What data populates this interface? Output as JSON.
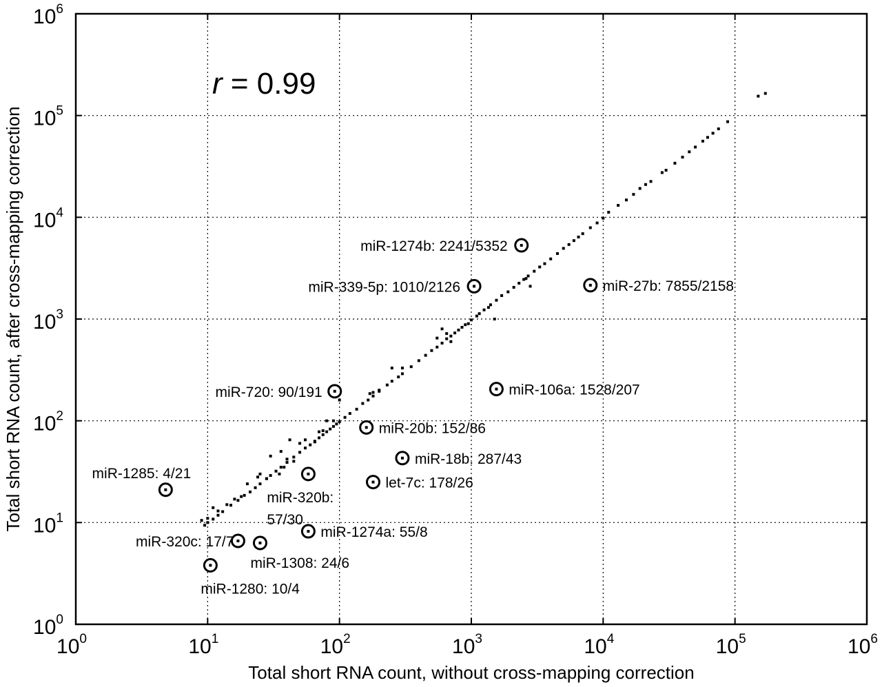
{
  "chart_data": {
    "type": "scatter",
    "title": "",
    "xlabel": "Total short RNA count, without cross-mapping correction",
    "ylabel": "Total short RNA count, after cross-mapping correction",
    "xscale": "log",
    "yscale": "log",
    "xlim": [
      1,
      1000000
    ],
    "ylim": [
      1,
      1000000
    ],
    "grid": true,
    "grid_style": "dotted",
    "xticks": [
      {
        "base": "10",
        "exp": "0"
      },
      {
        "base": "10",
        "exp": "1"
      },
      {
        "base": "10",
        "exp": "2"
      },
      {
        "base": "10",
        "exp": "3"
      },
      {
        "base": "10",
        "exp": "4"
      },
      {
        "base": "10",
        "exp": "5"
      },
      {
        "base": "10",
        "exp": "6"
      }
    ],
    "yticks": [
      {
        "base": "10",
        "exp": "0"
      },
      {
        "base": "10",
        "exp": "1"
      },
      {
        "base": "10",
        "exp": "2"
      },
      {
        "base": "10",
        "exp": "3"
      },
      {
        "base": "10",
        "exp": "4"
      },
      {
        "base": "10",
        "exp": "5"
      },
      {
        "base": "10",
        "exp": "6"
      }
    ],
    "correlation": {
      "symbol": "r",
      "text": " = 0.99"
    },
    "points": [
      [
        150000,
        155000
      ],
      [
        170000,
        165000
      ],
      [
        88000,
        87000
      ],
      [
        75000,
        74000
      ],
      [
        68000,
        67000
      ],
      [
        62000,
        61000
      ],
      [
        57000,
        56000
      ],
      [
        50000,
        49000
      ],
      [
        45000,
        44000
      ],
      [
        40000,
        39000
      ],
      [
        35000,
        34000
      ],
      [
        30000,
        29000
      ],
      [
        28000,
        27500
      ],
      [
        23000,
        22500
      ],
      [
        21000,
        21000
      ],
      [
        19000,
        19200
      ],
      [
        17000,
        16800
      ],
      [
        15000,
        14800
      ],
      [
        13000,
        13100
      ],
      [
        11000,
        11200
      ],
      [
        10000,
        9800
      ],
      [
        9000,
        8800
      ],
      [
        8000,
        7900
      ],
      [
        7000,
        6900
      ],
      [
        6500,
        6400
      ],
      [
        6000,
        5900
      ],
      [
        5500,
        5400
      ],
      [
        5000,
        4950
      ],
      [
        4500,
        4400
      ],
      [
        4000,
        3900
      ],
      [
        3600,
        3500
      ],
      [
        3300,
        3250
      ],
      [
        3000,
        2950
      ],
      [
        2700,
        2650
      ],
      [
        2500,
        2450
      ],
      [
        2300,
        2250
      ],
      [
        2100,
        2050
      ],
      [
        1900,
        1850
      ],
      [
        1700,
        1700
      ],
      [
        1550,
        1530
      ],
      [
        1400,
        1380
      ],
      [
        1250,
        1230
      ],
      [
        1150,
        1130
      ],
      [
        1100,
        1070
      ],
      [
        1000,
        980
      ],
      [
        950,
        900
      ],
      [
        900,
        880
      ],
      [
        850,
        830
      ],
      [
        800,
        780
      ],
      [
        750,
        730
      ],
      [
        700,
        680
      ],
      [
        650,
        640
      ],
      [
        600,
        580
      ],
      [
        550,
        530
      ],
      [
        500,
        490
      ],
      [
        450,
        440
      ],
      [
        400,
        390
      ],
      [
        350,
        340
      ],
      [
        300,
        290
      ],
      [
        280,
        270
      ],
      [
        250,
        245
      ],
      [
        230,
        225
      ],
      [
        200,
        195
      ],
      [
        180,
        175
      ],
      [
        165,
        160
      ],
      [
        150,
        148
      ],
      [
        135,
        130
      ],
      [
        120,
        118
      ],
      [
        110,
        108
      ],
      [
        100,
        98
      ],
      [
        95,
        93
      ],
      [
        90,
        88
      ],
      [
        85,
        83
      ],
      [
        80,
        78
      ],
      [
        75,
        73
      ],
      [
        70,
        68
      ],
      [
        65,
        63
      ],
      [
        60,
        58
      ],
      [
        55,
        54
      ],
      [
        50,
        49
      ],
      [
        45,
        44
      ],
      [
        40,
        39
      ],
      [
        36,
        35
      ],
      [
        33,
        32
      ],
      [
        30,
        29
      ],
      [
        28,
        27
      ],
      [
        25,
        24
      ],
      [
        23,
        22
      ],
      [
        21,
        20
      ],
      [
        19,
        18.5
      ],
      [
        17,
        16.5
      ],
      [
        15,
        14.8
      ],
      [
        13,
        12.8
      ],
      [
        12,
        11.8
      ],
      [
        11,
        10.8
      ],
      [
        10,
        10
      ],
      [
        9.5,
        9.4
      ],
      [
        9,
        10.5
      ],
      [
        2800,
        2100
      ],
      [
        2600,
        2500
      ],
      [
        1500,
        1000
      ],
      [
        1350,
        1300
      ],
      [
        700,
        600
      ],
      [
        650,
        720
      ],
      [
        600,
        800
      ],
      [
        550,
        650
      ],
      [
        300,
        330
      ],
      [
        250,
        330
      ],
      [
        200,
        200
      ],
      [
        180,
        190
      ],
      [
        170,
        185
      ],
      [
        100,
        160
      ],
      [
        95,
        175
      ],
      [
        90,
        100
      ],
      [
        80,
        100
      ],
      [
        75,
        80
      ],
      [
        70,
        78
      ],
      [
        65,
        62
      ],
      [
        55,
        65
      ],
      [
        50,
        60
      ],
      [
        45,
        40
      ],
      [
        42,
        65
      ],
      [
        40,
        42
      ],
      [
        38,
        35
      ],
      [
        36,
        50
      ],
      [
        35,
        30
      ],
      [
        30,
        45
      ],
      [
        28,
        27
      ],
      [
        25,
        30
      ],
      [
        24,
        28
      ],
      [
        20,
        24
      ],
      [
        18,
        18
      ],
      [
        16,
        17
      ],
      [
        14,
        15
      ],
      [
        12,
        13
      ],
      [
        11,
        14
      ],
      [
        10,
        11
      ]
    ],
    "annotations": [
      {
        "label": "miR-1274b: 2241/5352",
        "x": 2400,
        "y": 5300,
        "anchor": "end",
        "dx": -20,
        "dy": 0
      },
      {
        "label": "miR-339-5p: 1010/2126",
        "x": 1050,
        "y": 2100,
        "anchor": "end",
        "dx": -20,
        "dy": 0
      },
      {
        "label": "miR-27b: 7855/2158",
        "x": 8000,
        "y": 2150,
        "anchor": "start",
        "dx": 18,
        "dy": 0
      },
      {
        "label": "miR-720: 90/191",
        "x": 92,
        "y": 195,
        "anchor": "end",
        "dx": -18,
        "dy": 0
      },
      {
        "label": "miR-106a: 1528/207",
        "x": 1550,
        "y": 205,
        "anchor": "start",
        "dx": 18,
        "dy": 0
      },
      {
        "label": "miR-20b: 152/86",
        "x": 160,
        "y": 86,
        "anchor": "start",
        "dx": 18,
        "dy": 0
      },
      {
        "label": "miR-18b: 287/43",
        "x": 300,
        "y": 43,
        "anchor": "start",
        "dx": 18,
        "dy": 0
      },
      {
        "label": "let-7c: 178/26",
        "x": 180,
        "y": 25,
        "anchor": "start",
        "dx": 18,
        "dy": 0
      },
      {
        "label": "miR-1285: 4/21",
        "x": 4.8,
        "y": 21,
        "anchor": "middle",
        "dx": -35,
        "dy": -25
      },
      {
        "label": "miR-320b:",
        "x": 58,
        "y": 30,
        "anchor": "start",
        "dx": -60,
        "dy": 33
      },
      {
        "label": "57/30",
        "x": 58,
        "y": 30,
        "anchor": "start",
        "dx": -60,
        "dy": 65
      },
      {
        "label": "miR-1274a: 55/8",
        "x": 58,
        "y": 8.2,
        "anchor": "start",
        "dx": 18,
        "dy": 0
      },
      {
        "label": "miR-320c: 17/7",
        "x": 17,
        "y": 6.6,
        "anchor": "end",
        "dx": -6,
        "dy": 0
      },
      {
        "label": "miR-1308: 24/6",
        "x": 25,
        "y": 6.3,
        "anchor": "start",
        "dx": -14,
        "dy": 28
      },
      {
        "label": "miR-1280: 10/4",
        "x": 10.5,
        "y": 3.8,
        "anchor": "start",
        "dx": -14,
        "dy": 33
      }
    ]
  }
}
